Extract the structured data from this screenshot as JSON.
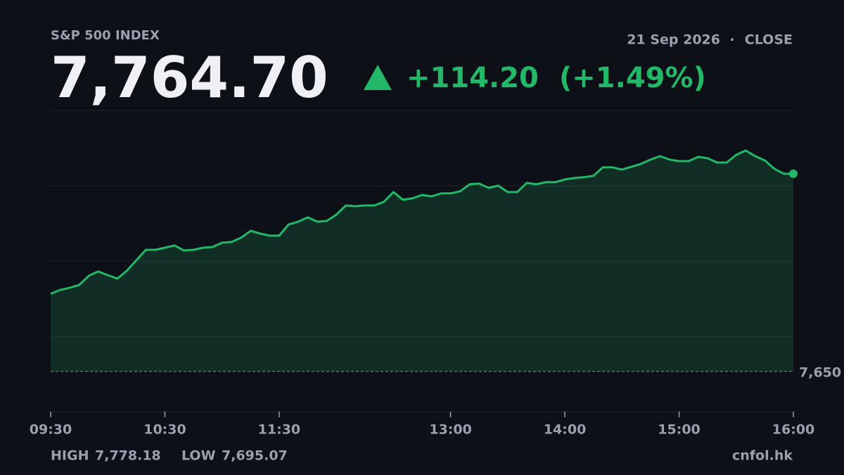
{
  "chart_data": {
    "type": "area",
    "title": "S&P 500 INDEX",
    "date": "21 Sep 2026",
    "status": "CLOSE",
    "price": "7,764.70",
    "change": "+114.20",
    "change_pct": "(+1.49%)",
    "high_label": "HIGH",
    "high": "7,778.18",
    "low_label": "LOW",
    "low": "7,695.07",
    "source": "cnfol.hk",
    "color": "#22b868",
    "x": [
      "09:30",
      "09:35",
      "09:40",
      "09:45",
      "09:50",
      "09:55",
      "10:00",
      "10:05",
      "10:10",
      "10:15",
      "10:20",
      "10:25",
      "10:30",
      "10:35",
      "10:40",
      "10:45",
      "10:50",
      "10:55",
      "11:00",
      "11:05",
      "11:10",
      "11:15",
      "11:20",
      "11:25",
      "11:30",
      "11:35",
      "11:40",
      "11:45",
      "11:50",
      "11:55",
      "12:00",
      "12:05",
      "12:10",
      "12:15",
      "12:20",
      "12:25",
      "12:30",
      "12:35",
      "12:40",
      "12:45",
      "12:50",
      "12:55",
      "13:00",
      "13:05",
      "13:10",
      "13:15",
      "13:20",
      "13:25",
      "13:30",
      "13:35",
      "13:40",
      "13:45",
      "13:50",
      "13:55",
      "14:00",
      "14:05",
      "14:10",
      "14:15",
      "14:20",
      "14:25",
      "14:30",
      "14:35",
      "14:40",
      "14:45",
      "14:50",
      "14:55",
      "15:00",
      "15:05",
      "15:10",
      "15:15",
      "15:20",
      "15:25",
      "15:30",
      "15:35",
      "15:40",
      "15:45",
      "15:50",
      "15:55",
      "16:00"
    ],
    "values": [
      7695.07,
      7697.3,
      7698.6,
      7700.2,
      7705.5,
      7708.0,
      7705.9,
      7703.9,
      7708.4,
      7714.5,
      7720.6,
      7720.6,
      7721.8,
      7723.1,
      7720.2,
      7720.6,
      7721.8,
      7722.2,
      7724.7,
      7725.1,
      7727.6,
      7731.6,
      7730.0,
      7728.8,
      7728.8,
      7735.3,
      7736.9,
      7739.4,
      7736.9,
      7737.3,
      7741.0,
      7746.3,
      7745.9,
      7746.3,
      7746.3,
      7748.4,
      7754.1,
      7749.6,
      7750.4,
      7752.4,
      7751.6,
      7753.3,
      7753.3,
      7754.5,
      7758.6,
      7759.0,
      7756.5,
      7757.8,
      7754.1,
      7754.1,
      7759.4,
      7758.6,
      7759.8,
      7759.8,
      7761.4,
      7762.2,
      7762.7,
      7763.5,
      7768.4,
      7768.4,
      7767.1,
      7768.8,
      7770.4,
      7772.9,
      7774.9,
      7772.9,
      7772.0,
      7772.0,
      7774.5,
      7773.7,
      7771.2,
      7771.2,
      7775.7,
      7778.18,
      7774.9,
      7772.4,
      7767.6,
      7764.7,
      7764.7
    ],
    "xlim": [
      "09:30",
      "16:00"
    ],
    "xticks": [
      "09:30",
      "10:30",
      "11:30",
      "13:00",
      "14:00",
      "15:00",
      "16:00"
    ],
    "ylim": [
      7626.7,
      7801.4
    ],
    "yticks": [
      {
        "value": 7650,
        "label": "7,650"
      }
    ]
  }
}
